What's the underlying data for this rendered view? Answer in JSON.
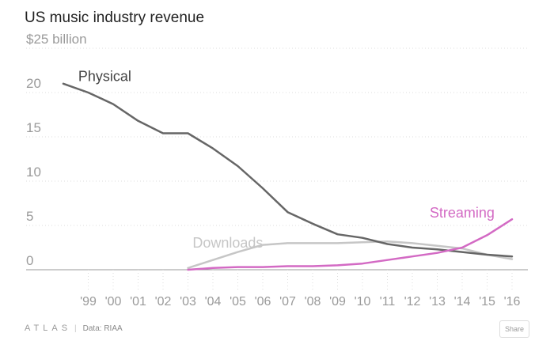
{
  "title": "US music industry revenue",
  "footer": {
    "logo": "ATLAS",
    "source": "Data: RIAA"
  },
  "share_label": "Share",
  "colors": {
    "physical": "#666666",
    "downloads": "#c6c6c6",
    "streaming": "#d36ac4",
    "axis_text": "#9a9a9a",
    "grid": "#dcdcdc",
    "baseline": "#999999"
  },
  "chart_data": {
    "type": "line",
    "title": "US music industry revenue",
    "xlabel": "",
    "ylabel": "",
    "ylim": [
      0,
      25
    ],
    "yticks": [
      0,
      5,
      10,
      15,
      20,
      25
    ],
    "ytick_labels": [
      "0",
      "5",
      "10",
      "15",
      "20",
      "$25 billion"
    ],
    "xlim": [
      1998,
      2016
    ],
    "xticks": [
      1999,
      2000,
      2001,
      2002,
      2003,
      2004,
      2005,
      2006,
      2007,
      2008,
      2009,
      2010,
      2011,
      2012,
      2013,
      2014,
      2015,
      2016
    ],
    "xtick_labels": [
      "'99",
      "'00",
      "'01",
      "'02",
      "'03",
      "'04",
      "'05",
      "'06",
      "'07",
      "'08",
      "'09",
      "'10",
      "'11",
      "'12",
      "'13",
      "'14",
      "'15",
      "'16"
    ],
    "legend_position": "inline labels",
    "series": [
      {
        "name": "Physical",
        "key": "physical",
        "x": [
          1998,
          1999,
          2000,
          2001,
          2002,
          2003,
          2004,
          2005,
          2006,
          2007,
          2008,
          2009,
          2010,
          2011,
          2012,
          2013,
          2014,
          2015,
          2016
        ],
        "values": [
          21.0,
          20.0,
          18.7,
          16.8,
          15.4,
          15.4,
          13.7,
          11.7,
          9.2,
          6.5,
          5.2,
          4.0,
          3.6,
          2.9,
          2.5,
          2.3,
          2.0,
          1.7,
          1.5
        ]
      },
      {
        "name": "Downloads",
        "key": "downloads",
        "x": [
          2003,
          2004,
          2005,
          2006,
          2007,
          2008,
          2009,
          2010,
          2011,
          2012,
          2013,
          2014,
          2015,
          2016
        ],
        "values": [
          0.2,
          1.1,
          2.0,
          2.8,
          3.0,
          3.0,
          3.0,
          3.1,
          3.2,
          3.0,
          2.7,
          2.4,
          1.7,
          1.2
        ]
      },
      {
        "name": "Streaming",
        "key": "streaming",
        "x": [
          2003,
          2004,
          2005,
          2006,
          2007,
          2008,
          2009,
          2010,
          2011,
          2012,
          2013,
          2014,
          2015,
          2016
        ],
        "values": [
          0.0,
          0.2,
          0.3,
          0.3,
          0.4,
          0.4,
          0.5,
          0.7,
          1.1,
          1.5,
          1.9,
          2.5,
          3.9,
          5.7
        ]
      }
    ]
  }
}
